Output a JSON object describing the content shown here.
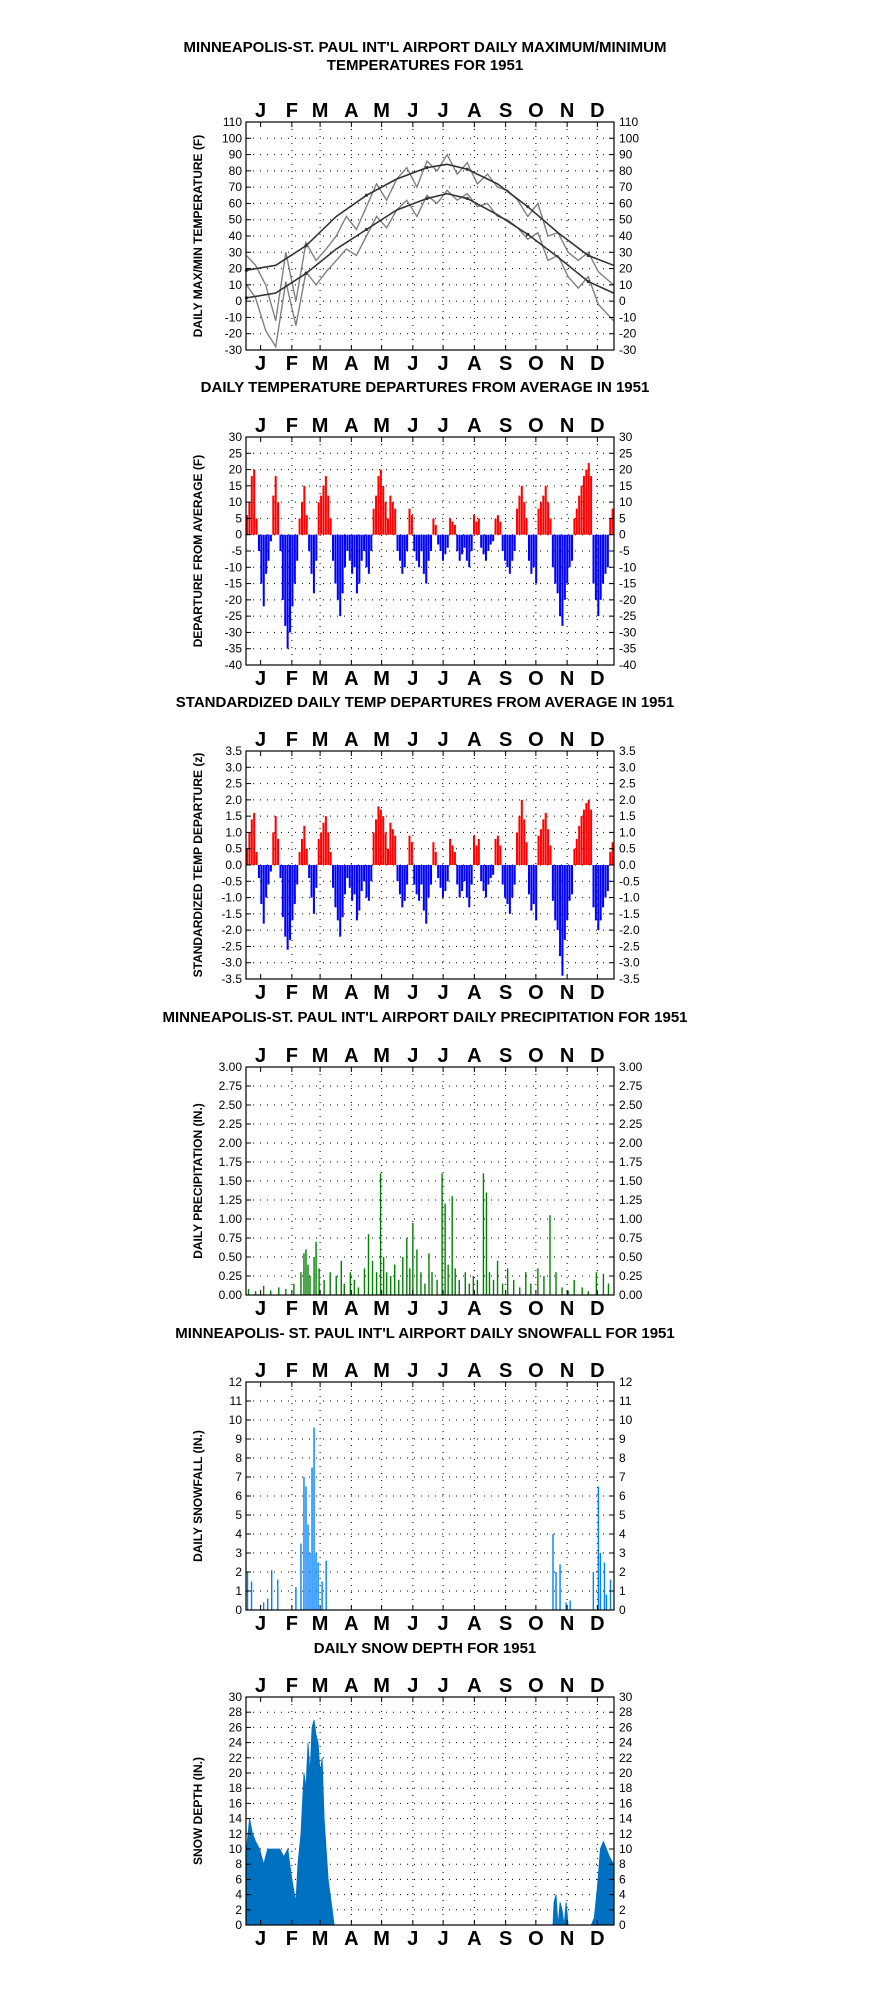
{
  "chart_data": [
    {
      "id": "temps",
      "type": "line",
      "title": [
        "MINNEAPOLIS-ST. PAUL INT'L AIRPORT DAILY MAXIMUM/MINIMUM",
        "TEMPERATURES FOR 1951"
      ],
      "ylabel": "DAILY MAX/MIN TEMPERATURE (F)",
      "months": [
        "J",
        "F",
        "M",
        "A",
        "M",
        "J",
        "J",
        "A",
        "S",
        "O",
        "N",
        "D"
      ],
      "ylim": [
        -30,
        110
      ],
      "yticks": [
        -30,
        -20,
        -10,
        0,
        10,
        20,
        30,
        40,
        50,
        60,
        70,
        80,
        90,
        100,
        110
      ],
      "grid": true,
      "series": [
        {
          "color": "#808080",
          "days": [
            1,
            10,
            20,
            30,
            40,
            50,
            60,
            70,
            80,
            90,
            100,
            110,
            120,
            130,
            140,
            150,
            160,
            170,
            180,
            190,
            200,
            210,
            220,
            230,
            240,
            250,
            260,
            270,
            280,
            290,
            300,
            310,
            320,
            330,
            340,
            350,
            365
          ],
          "values": [
            28,
            22,
            10,
            -12,
            30,
            0,
            36,
            25,
            32,
            40,
            52,
            44,
            58,
            72,
            62,
            75,
            82,
            70,
            86,
            80,
            90,
            78,
            85,
            72,
            78,
            70,
            68,
            62,
            52,
            60,
            40,
            42,
            30,
            25,
            30,
            18,
            10
          ]
        },
        {
          "color": "#808080",
          "days": [
            1,
            10,
            20,
            30,
            40,
            50,
            60,
            70,
            80,
            90,
            100,
            110,
            120,
            130,
            140,
            150,
            160,
            170,
            180,
            190,
            200,
            210,
            220,
            230,
            240,
            250,
            260,
            270,
            280,
            290,
            300,
            310,
            320,
            330,
            340,
            350,
            365
          ],
          "values": [
            10,
            2,
            -18,
            -28,
            12,
            -15,
            18,
            10,
            18,
            25,
            32,
            28,
            40,
            52,
            45,
            56,
            62,
            52,
            65,
            60,
            68,
            62,
            66,
            58,
            60,
            52,
            50,
            45,
            38,
            42,
            25,
            28,
            15,
            8,
            15,
            -2,
            -12
          ]
        },
        {
          "color": "#333333",
          "name": "",
          "days": [
            1,
            30,
            60,
            90,
            120,
            150,
            180,
            200,
            220,
            250,
            280,
            310,
            340,
            365
          ],
          "values": [
            19,
            22,
            34,
            52,
            65,
            75,
            82,
            84,
            81,
            72,
            58,
            42,
            28,
            22
          ]
        },
        {
          "color": "#333333",
          "name": "",
          "days": [
            1,
            30,
            60,
            90,
            120,
            150,
            180,
            200,
            220,
            250,
            280,
            310,
            340,
            365
          ],
          "values": [
            2,
            5,
            17,
            32,
            44,
            56,
            63,
            66,
            63,
            53,
            41,
            27,
            12,
            5
          ]
        }
      ]
    },
    {
      "id": "departures",
      "type": "bar",
      "title": [
        "DAILY TEMPERATURE DEPARTURES FROM AVERAGE IN 1951"
      ],
      "ylabel": "DEPARTURE FROM AVERAGE (F)",
      "months": [
        "J",
        "F",
        "M",
        "A",
        "M",
        "J",
        "J",
        "A",
        "S",
        "O",
        "N",
        "D"
      ],
      "ylim": [
        -40,
        30
      ],
      "yticks": [
        -40,
        -35,
        -30,
        -25,
        -20,
        -15,
        -10,
        -5,
        0,
        5,
        10,
        15,
        20,
        25,
        30
      ],
      "grid": true,
      "pos_color": "#ff0000",
      "neg_color": "#0000ff",
      "values": [
        6,
        10,
        18,
        20,
        5,
        -5,
        -15,
        -22,
        -12,
        -8,
        -2,
        12,
        18,
        10,
        -5,
        -20,
        -28,
        -35,
        -30,
        -22,
        -15,
        -8,
        5,
        10,
        15,
        6,
        -5,
        -12,
        -18,
        -8,
        10,
        12,
        15,
        18,
        12,
        5,
        -8,
        -15,
        -20,
        -25,
        -18,
        -10,
        -5,
        -8,
        -12,
        -10,
        -18,
        -15,
        -8,
        -5,
        -10,
        -12,
        -5,
        8,
        12,
        18,
        20,
        15,
        10,
        5,
        12,
        10,
        8,
        -5,
        -8,
        -12,
        -10,
        -5,
        8,
        6,
        -5,
        -8,
        -10,
        -5,
        -12,
        -15,
        -8,
        -5,
        5,
        3,
        -3,
        -5,
        -8,
        -6,
        -4,
        5,
        4,
        3,
        -5,
        -8,
        -6,
        -4,
        -8,
        -10,
        -5,
        6,
        4,
        5,
        -4,
        -6,
        -8,
        -5,
        -3,
        -2,
        5,
        6,
        4,
        -5,
        -8,
        -10,
        -12,
        -8,
        -5,
        8,
        12,
        15,
        10,
        5,
        -8,
        -12,
        -10,
        -15,
        8,
        10,
        12,
        15,
        10,
        5,
        -10,
        -15,
        -18,
        -25,
        -28,
        -20,
        -15,
        -10,
        -8,
        5,
        8,
        12,
        15,
        18,
        20,
        22,
        18,
        -15,
        -20,
        -25,
        -20,
        -15,
        -12,
        -10,
        5,
        8
      ]
    },
    {
      "id": "zscores",
      "type": "bar",
      "title": [
        "STANDARDIZED DAILY TEMP DEPARTURES FROM AVERAGE IN 1951"
      ],
      "ylabel": "STANDARDIZED TEMP DEPARTURE (z)",
      "months": [
        "J",
        "F",
        "M",
        "A",
        "M",
        "J",
        "J",
        "A",
        "S",
        "O",
        "N",
        "D"
      ],
      "ylim": [
        -3.5,
        3.5
      ],
      "yticks": [
        -3.5,
        -3.0,
        -2.5,
        -2.0,
        -1.5,
        -1.0,
        -0.5,
        0.0,
        0.5,
        1.0,
        1.5,
        2.0,
        2.5,
        3.0,
        3.5
      ],
      "grid": true,
      "pos_color": "#ff0000",
      "neg_color": "#0000ff",
      "values": [
        0.5,
        1.0,
        1.4,
        1.6,
        0.4,
        -0.4,
        -1.2,
        -1.8,
        -1.0,
        -0.6,
        -0.2,
        1.0,
        1.5,
        0.8,
        -0.4,
        -1.6,
        -2.2,
        -2.6,
        -2.3,
        -1.7,
        -1.2,
        -0.6,
        0.4,
        0.8,
        1.2,
        0.5,
        -0.4,
        -1.0,
        -1.5,
        -0.7,
        0.8,
        1.0,
        1.3,
        1.5,
        1.0,
        0.4,
        -0.7,
        -1.3,
        -1.7,
        -2.2,
        -1.6,
        -0.9,
        -0.4,
        -0.7,
        -1.1,
        -0.9,
        -1.7,
        -1.4,
        -0.8,
        -0.5,
        -1.0,
        -1.1,
        -0.5,
        1.0,
        1.4,
        1.8,
        1.7,
        1.5,
        1.0,
        0.5,
        1.3,
        1.1,
        0.9,
        -0.5,
        -0.9,
        -1.3,
        -1.1,
        -0.6,
        0.9,
        0.7,
        -0.6,
        -0.9,
        -1.1,
        -0.6,
        -1.4,
        -1.8,
        -1.0,
        -0.6,
        0.7,
        0.4,
        -0.4,
        -0.7,
        -1.0,
        -0.8,
        -0.5,
        0.8,
        0.6,
        0.4,
        -0.6,
        -1.0,
        -0.8,
        -0.5,
        -1.0,
        -1.3,
        -0.6,
        0.9,
        0.6,
        0.8,
        -0.5,
        -0.8,
        -1.0,
        -0.6,
        -0.4,
        -0.3,
        0.8,
        0.9,
        0.6,
        -0.6,
        -1.0,
        -1.2,
        -1.5,
        -1.0,
        -0.6,
        1.0,
        1.5,
        2.0,
        1.4,
        0.7,
        -0.9,
        -1.4,
        -1.2,
        -1.7,
        0.9,
        1.1,
        1.4,
        1.6,
        1.1,
        0.6,
        -1.1,
        -1.7,
        -2.0,
        -2.8,
        -3.4,
        -2.3,
        -1.7,
        -1.1,
        -0.9,
        0.5,
        0.8,
        1.2,
        1.5,
        1.7,
        1.9,
        2.0,
        1.7,
        -1.3,
        -1.7,
        -2.0,
        -1.7,
        -1.3,
        -1.0,
        -0.8,
        0.4,
        0.7
      ]
    },
    {
      "id": "precip",
      "type": "bar",
      "title": [
        "MINNEAPOLIS-ST. PAUL INT'L AIRPORT DAILY PRECIPITATION FOR 1951"
      ],
      "ylabel": "DAILY PRECIPITATION (IN.)",
      "months": [
        "J",
        "F",
        "M",
        "A",
        "M",
        "J",
        "J",
        "A",
        "S",
        "O",
        "N",
        "D"
      ],
      "ylim": [
        0,
        3
      ],
      "yticks": [
        0.0,
        0.25,
        0.5,
        0.75,
        1.0,
        1.25,
        1.5,
        1.75,
        2.0,
        2.25,
        2.5,
        2.75,
        3.0
      ],
      "grid": true,
      "bar_color": "#008000",
      "events": [
        [
          3,
          0.08
        ],
        [
          10,
          0.05
        ],
        [
          18,
          0.12
        ],
        [
          25,
          0.06
        ],
        [
          33,
          0.1
        ],
        [
          40,
          0.08
        ],
        [
          48,
          0.15
        ],
        [
          55,
          0.3
        ],
        [
          58,
          0.55
        ],
        [
          60,
          0.6
        ],
        [
          62,
          0.4
        ],
        [
          64,
          0.25
        ],
        [
          68,
          0.5
        ],
        [
          70,
          0.7
        ],
        [
          73,
          0.35
        ],
        [
          78,
          0.2
        ],
        [
          84,
          0.3
        ],
        [
          90,
          0.25
        ],
        [
          95,
          0.45
        ],
        [
          98,
          0.15
        ],
        [
          104,
          0.3
        ],
        [
          108,
          0.2
        ],
        [
          112,
          0.1
        ],
        [
          118,
          0.35
        ],
        [
          122,
          0.8
        ],
        [
          126,
          0.45
        ],
        [
          130,
          0.3
        ],
        [
          134,
          1.6
        ],
        [
          137,
          0.5
        ],
        [
          140,
          0.3
        ],
        [
          144,
          0.25
        ],
        [
          148,
          0.4
        ],
        [
          152,
          0.2
        ],
        [
          156,
          0.5
        ],
        [
          160,
          0.75
        ],
        [
          163,
          0.35
        ],
        [
          166,
          0.95
        ],
        [
          170,
          0.6
        ],
        [
          174,
          0.3
        ],
        [
          178,
          0.15
        ],
        [
          182,
          0.55
        ],
        [
          185,
          0.3
        ],
        [
          190,
          0.2
        ],
        [
          195,
          1.6
        ],
        [
          198,
          1.2
        ],
        [
          201,
          0.4
        ],
        [
          205,
          1.3
        ],
        [
          208,
          0.35
        ],
        [
          212,
          0.2
        ],
        [
          218,
          0.3
        ],
        [
          222,
          0.15
        ],
        [
          226,
          0.25
        ],
        [
          230,
          0.2
        ],
        [
          236,
          1.6
        ],
        [
          239,
          1.35
        ],
        [
          242,
          0.3
        ],
        [
          246,
          0.2
        ],
        [
          250,
          0.45
        ],
        [
          255,
          0.15
        ],
        [
          260,
          0.35
        ],
        [
          266,
          0.2
        ],
        [
          272,
          0.1
        ],
        [
          278,
          0.3
        ],
        [
          283,
          0.15
        ],
        [
          290,
          0.35
        ],
        [
          296,
          0.25
        ],
        [
          302,
          1.05
        ],
        [
          308,
          0.3
        ],
        [
          314,
          0.1
        ],
        [
          320,
          0.06
        ],
        [
          326,
          0.2
        ],
        [
          334,
          0.1
        ],
        [
          340,
          0.05
        ],
        [
          348,
          0.3
        ],
        [
          355,
          0.28
        ],
        [
          360,
          0.15
        ]
      ]
    },
    {
      "id": "snowfall",
      "type": "bar",
      "title": [
        "MINNEAPOLIS- ST. PAUL INT'L AIRPORT DAILY SNOWFALL FOR 1951"
      ],
      "ylabel": "DAILY SNOWFALL (IN.)",
      "months": [
        "J",
        "F",
        "M",
        "A",
        "M",
        "J",
        "J",
        "A",
        "S",
        "O",
        "N",
        "D"
      ],
      "ylim": [
        0,
        12
      ],
      "yticks": [
        0,
        1,
        2,
        3,
        4,
        5,
        6,
        7,
        8,
        9,
        10,
        11,
        12
      ],
      "grid": true,
      "bar_color": "#0080ff",
      "events": [
        [
          2,
          2.0
        ],
        [
          6,
          1.5
        ],
        [
          18,
          0.4
        ],
        [
          22,
          0.6
        ],
        [
          26,
          2.1
        ],
        [
          32,
          1.6
        ],
        [
          50,
          1.2
        ],
        [
          55,
          3.5
        ],
        [
          58,
          7.0
        ],
        [
          60,
          6.5
        ],
        [
          62,
          4.5
        ],
        [
          64,
          3.0
        ],
        [
          66,
          7.5
        ],
        [
          68,
          9.6
        ],
        [
          70,
          3.0
        ],
        [
          72,
          2.5
        ],
        [
          76,
          1.5
        ],
        [
          80,
          2.6
        ],
        [
          305,
          4.0
        ],
        [
          308,
          2.0
        ],
        [
          312,
          2.4
        ],
        [
          318,
          0.4
        ],
        [
          322,
          0.5
        ],
        [
          345,
          2.0
        ],
        [
          350,
          6.5
        ],
        [
          352,
          3.0
        ],
        [
          356,
          2.5
        ],
        [
          358,
          0.8
        ],
        [
          362,
          1.6
        ]
      ]
    },
    {
      "id": "snowdepth",
      "type": "area",
      "title": [
        "DAILY SNOW DEPTH FOR 1951"
      ],
      "ylabel": "SNOW DEPTH (IN.)",
      "months": [
        "J",
        "F",
        "M",
        "A",
        "M",
        "J",
        "J",
        "A",
        "S",
        "O",
        "N",
        "D"
      ],
      "ylim": [
        0,
        30
      ],
      "yticks": [
        0,
        2,
        4,
        6,
        8,
        10,
        12,
        14,
        16,
        18,
        20,
        22,
        24,
        26,
        28,
        30
      ],
      "grid": true,
      "fill_color": "#0070c0",
      "days": [
        1,
        4,
        7,
        10,
        14,
        18,
        22,
        26,
        30,
        34,
        38,
        42,
        46,
        50,
        52,
        55,
        58,
        60,
        62,
        64,
        66,
        68,
        70,
        72,
        74,
        76,
        78,
        80,
        82,
        85,
        88,
        300,
        305,
        306,
        308,
        310,
        312,
        314,
        316,
        318,
        320,
        340,
        343,
        346,
        349,
        352,
        355,
        358,
        361,
        365
      ],
      "values": [
        10,
        14,
        12,
        11,
        10,
        8,
        10,
        10,
        10,
        10,
        9,
        10,
        6,
        3,
        8,
        12,
        20,
        18,
        24,
        20,
        26,
        27,
        25,
        24,
        20,
        22,
        14,
        10,
        6,
        3,
        0,
        0,
        0,
        3,
        4,
        0,
        3,
        2,
        0,
        3,
        0,
        0,
        0,
        1,
        5,
        10,
        11,
        10,
        9,
        8
      ]
    }
  ]
}
